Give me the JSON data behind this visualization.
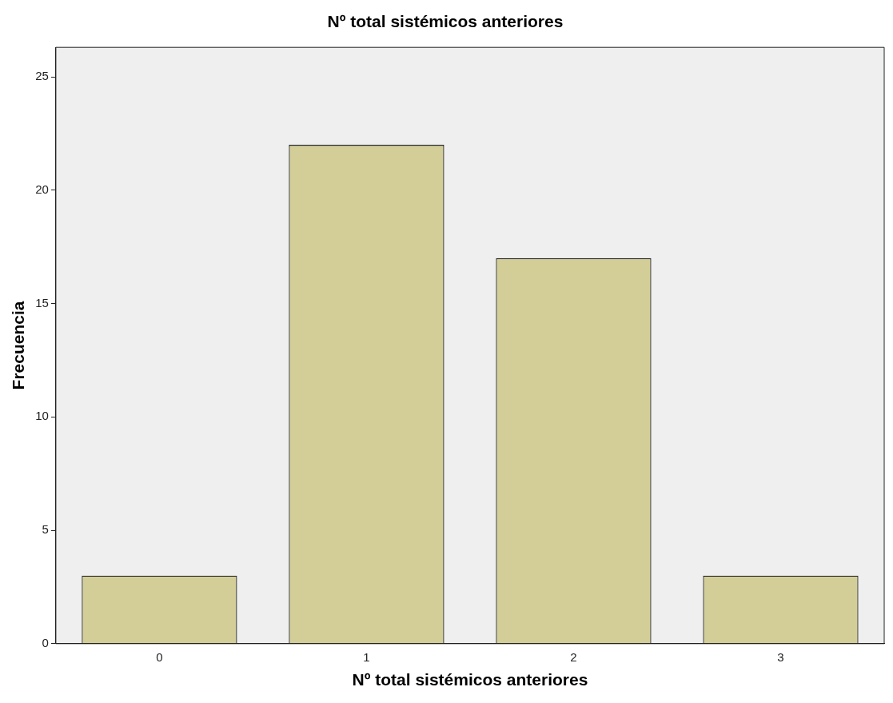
{
  "chart_data": {
    "type": "bar",
    "title": "Nº total sistémicos anteriores",
    "xlabel": "Nº total sistémicos anteriores",
    "ylabel": "Frecuencia",
    "categories": [
      "0",
      "1",
      "2",
      "3"
    ],
    "values": [
      3,
      22,
      17,
      3
    ],
    "color": "#d3ce97",
    "ylim": [
      0,
      26.3
    ],
    "yticks": [
      0,
      5,
      10,
      15,
      20,
      25
    ],
    "grid": false,
    "legend": false
  }
}
